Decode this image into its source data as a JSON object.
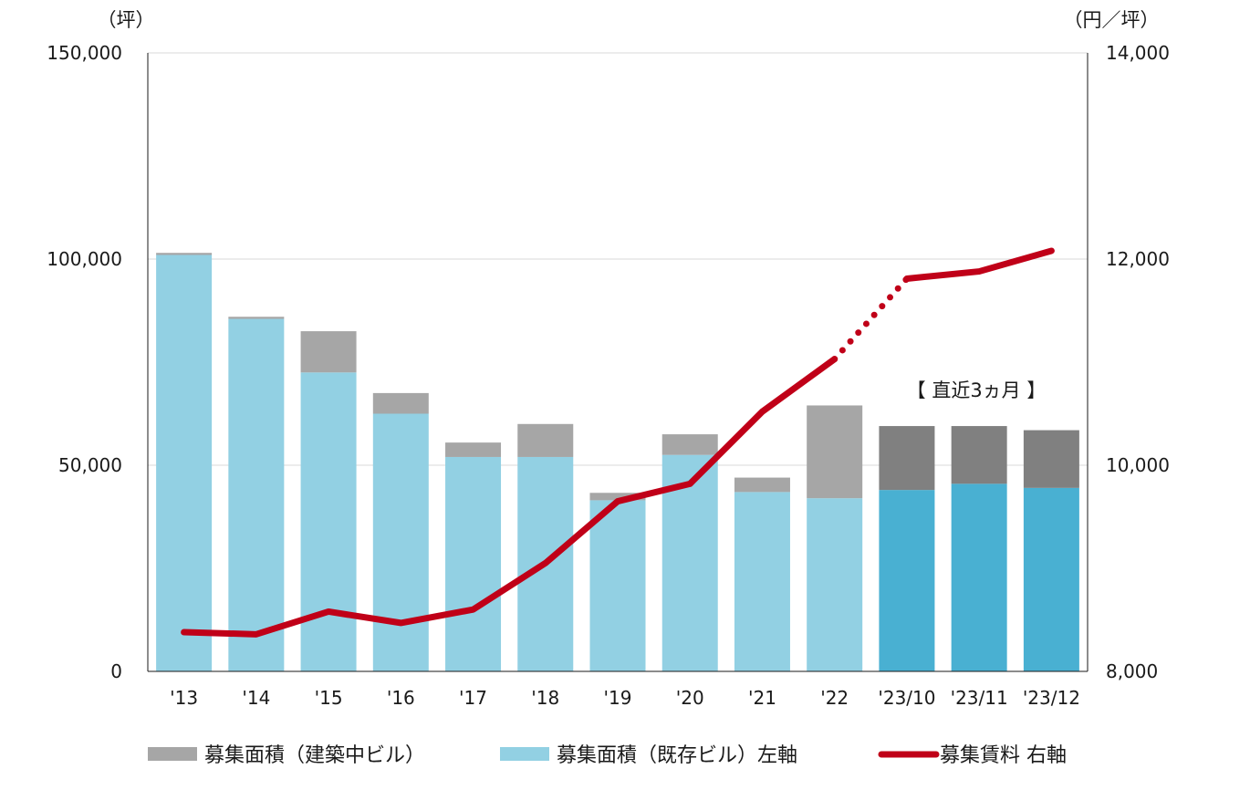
{
  "chart_data": {
    "type": "bar",
    "categories": [
      "'13",
      "'14",
      "'15",
      "'16",
      "'17",
      "'18",
      "'19",
      "'20",
      "'21",
      "'22",
      "'23/10",
      "'23/11",
      "'23/12"
    ],
    "series": [
      {
        "name": "募集面積（既存ビル）左軸",
        "type": "bar",
        "axis": "left",
        "values": [
          101000,
          85500,
          72500,
          62500,
          52000,
          52000,
          41500,
          52500,
          43500,
          42000,
          44000,
          45500,
          44500
        ],
        "color": "#92d0e3",
        "recent_color": "#49b0d2"
      },
      {
        "name": "募集面積（建築中ビル）",
        "type": "bar",
        "axis": "left",
        "values": [
          500,
          500,
          10000,
          5000,
          3500,
          8000,
          1800,
          5000,
          3500,
          22500,
          15500,
          14000,
          14000
        ],
        "color": "#a6a6a6",
        "recent_color": "#808080"
      },
      {
        "name": "募集賃料 右軸",
        "type": "line",
        "axis": "right",
        "values": [
          8380,
          8360,
          8580,
          8470,
          8600,
          9050,
          9650,
          9820,
          10520,
          11030,
          11810,
          11880,
          12080
        ],
        "color": "#c00018",
        "dotted_segment": [
          "'22",
          "'23/10"
        ]
      }
    ],
    "left_axis": {
      "unit": "（坪）",
      "ylim": [
        0,
        150000
      ],
      "ticks": [
        0,
        50000,
        100000,
        150000
      ],
      "tick_labels": [
        "0",
        "50,000",
        "100,000",
        "150,000"
      ]
    },
    "right_axis": {
      "unit": "（円／坪）",
      "ylim": [
        8000,
        14000
      ],
      "ticks": [
        8000,
        10000,
        12000,
        14000
      ],
      "tick_labels": [
        "8,000",
        "10,000",
        "12,000",
        "14,000"
      ]
    },
    "annotation": "【 直近3ヵ月 】",
    "recent_start_index": 10,
    "grid": true,
    "legend_position": "bottom",
    "legend": [
      "募集面積（建築中ビル）",
      "募集面積（既存ビル）左軸",
      "募集賃料 右軸"
    ]
  }
}
